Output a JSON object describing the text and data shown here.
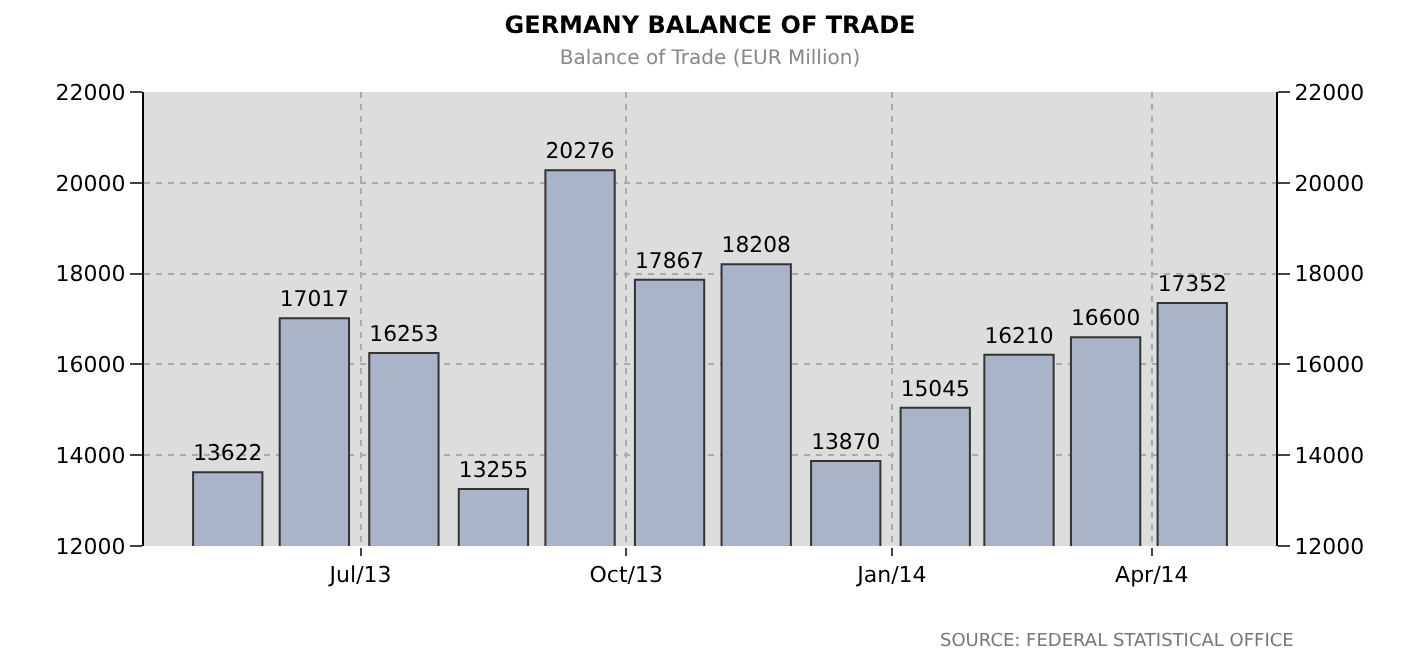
{
  "chart_data": {
    "type": "bar",
    "title": "GERMANY BALANCE OF TRADE",
    "subtitle": "Balance of Trade (EUR Million)",
    "x": [
      "2013-05-16",
      "2013-06-15",
      "2013-07-16",
      "2013-08-16",
      "2013-09-15",
      "2013-10-16",
      "2013-11-15",
      "2013-12-16",
      "2014-01-16",
      "2014-02-14",
      "2014-03-16",
      "2014-04-15"
    ],
    "values": [
      13622,
      17017,
      16253,
      13255,
      20276,
      17867,
      18208,
      13870,
      15045,
      16210,
      16600,
      17352
    ],
    "color": "#a9b4c8",
    "data_labels": true,
    "xlim": [
      "2013-04-17",
      "2014-05-14"
    ],
    "xticks": [
      {
        "value": "2013-07-01",
        "label": "Jul/13"
      },
      {
        "value": "2013-10-01",
        "label": "Oct/13"
      },
      {
        "value": "2014-01-01",
        "label": "Jan/14"
      },
      {
        "value": "2014-04-01",
        "label": "Apr/14"
      }
    ],
    "ylim": [
      12000,
      22000
    ],
    "yticks": [
      12000,
      14000,
      16000,
      18000,
      20000,
      22000
    ],
    "y2lim": [
      12000,
      22000
    ],
    "y2ticks": [
      12000,
      14000,
      16000,
      18000,
      20000,
      22000
    ],
    "grid": true,
    "legend": false,
    "annotations": [
      "SOURCE: FEDERAL STATISTICAL OFFICE"
    ]
  }
}
